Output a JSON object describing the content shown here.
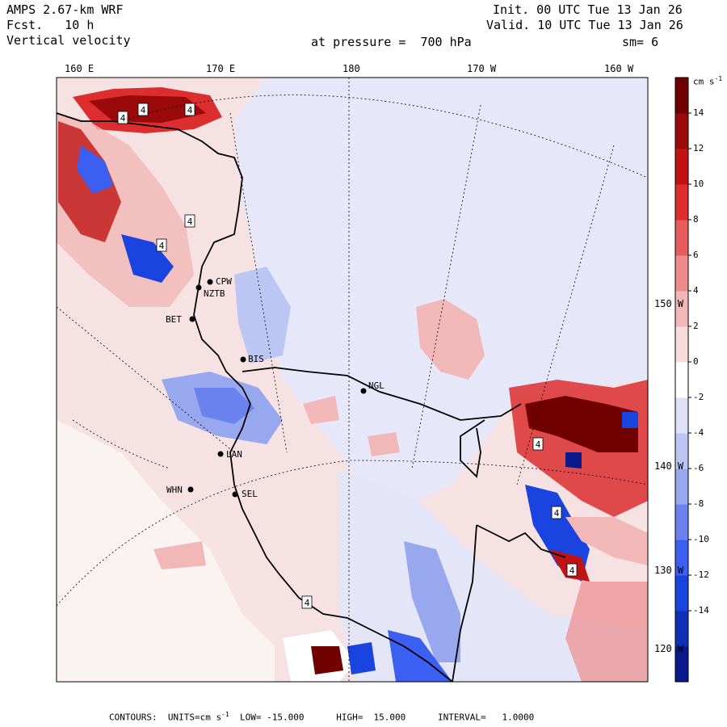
{
  "header": {
    "model": "AMPS 2.67-km WRF",
    "forecast": "Fcst.   10 h",
    "variable": "Vertical velocity",
    "init": "Init. 00 UTC Tue 13 Jan 26",
    "valid": "Valid. 10 UTC Tue 13 Jan 26",
    "pressure": "at pressure =  700 hPa",
    "smoothing": "sm= 6"
  },
  "longitude_labels": [
    "160 E",
    "170 E",
    "180",
    "170 W",
    "160 W"
  ],
  "latitude_labels": [
    "150 W",
    "140 W",
    "130 W",
    "120 W"
  ],
  "colorbar": {
    "units_label": "cm s",
    "units_exp": "-1",
    "ticks": [
      "14",
      "12",
      "10",
      "8",
      "6",
      "4",
      "2",
      "0",
      "-2",
      "-4",
      "-6",
      "-8",
      "-10",
      "-12",
      "-14"
    ],
    "colors": [
      "#0a1a8a",
      "#0f2fb5",
      "#1a44e0",
      "#3b5ff0",
      "#6b82ee",
      "#98a8ef",
      "#bcc6f3",
      "#dde2f8",
      "#ffffff",
      "#f8dcdc",
      "#f2b8b8",
      "#ec8c8c",
      "#e65c5c",
      "#dc2e2e",
      "#c01414",
      "#9a0a0a",
      "#700000"
    ]
  },
  "stations": [
    "CPW",
    "NZTB",
    "BET",
    "BIS",
    "NGL",
    "LAN",
    "WHN",
    "SEL"
  ],
  "contour_label": "4",
  "footer": {
    "contours": "CONTOURS:  UNITS=cm s",
    "units_exp": "-1",
    "low": "LOW= -15.000",
    "high": "HIGH=  15.000",
    "interval": "INTERVAL=   1.0000"
  }
}
